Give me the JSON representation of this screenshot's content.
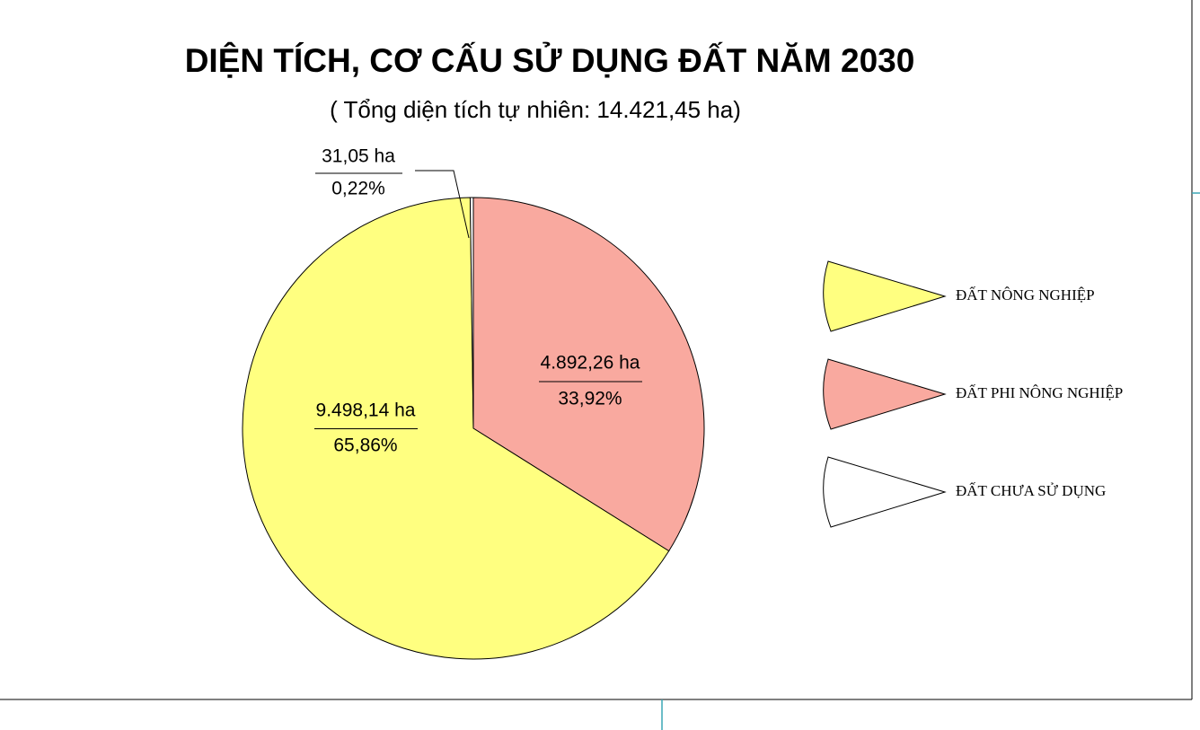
{
  "chart_data": {
    "type": "pie",
    "title": "DIỆN TÍCH, CƠ CẤU SỬ DỤNG ĐẤT NĂM 2030",
    "subtitle": "( Tổng diện tích tự nhiên: 14.421,45 ha)",
    "categories": [
      "ĐẤT NÔNG NGHIỆP",
      "ĐẤT PHI NÔNG NGHIỆP",
      "ĐẤT CHƯA SỬ DỤNG"
    ],
    "values": [
      65.86,
      33.92,
      0.22
    ],
    "value_labels": [
      "65,86%",
      "33,92%",
      "0,22%"
    ],
    "areas": [
      9498.14,
      4892.26,
      31.05
    ],
    "area_labels": [
      "9.498,14 ha",
      "4.892,26 ha",
      "31,05 ha"
    ],
    "colors": [
      "#ffff80",
      "#f9a99f",
      "#ffffff"
    ]
  }
}
